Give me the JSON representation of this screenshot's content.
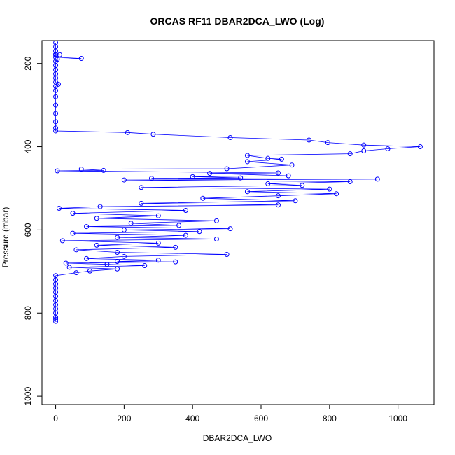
{
  "chart_data": {
    "type": "scatter",
    "title": "ORCAS RF11 DBAR2DCA_LWO (Log)",
    "xlabel": "DBAR2DCA_LWO",
    "ylabel": "Pressure (mbar)",
    "xlim": [
      -40,
      1105
    ],
    "ylim": [
      1020,
      145
    ],
    "y_reversed": true,
    "grid": false,
    "legend": "none",
    "x_ticks": [
      0,
      200,
      400,
      600,
      800,
      1000
    ],
    "y_ticks": [
      200,
      400,
      600,
      800,
      1000
    ],
    "x_tick_labels": [
      "0",
      "200",
      "400",
      "600",
      "800",
      "1000"
    ],
    "y_tick_labels": [
      "200",
      "400",
      "600",
      "800",
      "1000"
    ],
    "series": [
      {
        "color": "#0000ff",
        "marker": "open-circle",
        "connected": true,
        "points": [
          [
            0,
            150
          ],
          [
            0,
            160
          ],
          [
            0,
            170
          ],
          [
            0,
            178
          ],
          [
            12,
            179
          ],
          [
            0,
            180
          ],
          [
            0,
            185
          ],
          [
            75,
            188
          ],
          [
            5,
            190
          ],
          [
            0,
            195
          ],
          [
            0,
            205
          ],
          [
            0,
            215
          ],
          [
            0,
            225
          ],
          [
            0,
            235
          ],
          [
            0,
            245
          ],
          [
            8,
            250
          ],
          [
            0,
            255
          ],
          [
            0,
            265
          ],
          [
            0,
            280
          ],
          [
            0,
            300
          ],
          [
            0,
            320
          ],
          [
            0,
            340
          ],
          [
            0,
            355
          ],
          [
            0,
            362
          ],
          [
            210,
            366
          ],
          [
            285,
            370
          ],
          [
            510,
            378
          ],
          [
            740,
            384
          ],
          [
            795,
            390
          ],
          [
            900,
            396
          ],
          [
            1065,
            400
          ],
          [
            970,
            405
          ],
          [
            900,
            410
          ],
          [
            860,
            417
          ],
          [
            560,
            421
          ],
          [
            620,
            428
          ],
          [
            660,
            430
          ],
          [
            560,
            436
          ],
          [
            690,
            444
          ],
          [
            500,
            453
          ],
          [
            75,
            454
          ],
          [
            140,
            457
          ],
          [
            5,
            458
          ],
          [
            650,
            463
          ],
          [
            450,
            464
          ],
          [
            680,
            470
          ],
          [
            400,
            472
          ],
          [
            540,
            475
          ],
          [
            280,
            476
          ],
          [
            940,
            478
          ],
          [
            200,
            480
          ],
          [
            860,
            484
          ],
          [
            620,
            489
          ],
          [
            720,
            493
          ],
          [
            250,
            498
          ],
          [
            800,
            502
          ],
          [
            560,
            508
          ],
          [
            820,
            513
          ],
          [
            650,
            518
          ],
          [
            430,
            524
          ],
          [
            700,
            530
          ],
          [
            250,
            536
          ],
          [
            650,
            540
          ],
          [
            130,
            544
          ],
          [
            10,
            548
          ],
          [
            380,
            553
          ],
          [
            50,
            560
          ],
          [
            300,
            566
          ],
          [
            120,
            572
          ],
          [
            470,
            578
          ],
          [
            220,
            584
          ],
          [
            360,
            589
          ],
          [
            90,
            592
          ],
          [
            510,
            597
          ],
          [
            200,
            600
          ],
          [
            420,
            604
          ],
          [
            50,
            608
          ],
          [
            380,
            613
          ],
          [
            180,
            618
          ],
          [
            470,
            622
          ],
          [
            20,
            626
          ],
          [
            300,
            632
          ],
          [
            120,
            637
          ],
          [
            350,
            642
          ],
          [
            60,
            648
          ],
          [
            180,
            654
          ],
          [
            500,
            659
          ],
          [
            200,
            664
          ],
          [
            90,
            669
          ],
          [
            300,
            673
          ],
          [
            180,
            676
          ],
          [
            350,
            677
          ],
          [
            30,
            680
          ],
          [
            150,
            683
          ],
          [
            260,
            686
          ],
          [
            40,
            690
          ],
          [
            180,
            694
          ],
          [
            100,
            699
          ],
          [
            60,
            703
          ],
          [
            0,
            710
          ],
          [
            0,
            720
          ],
          [
            0,
            730
          ],
          [
            0,
            740
          ],
          [
            0,
            750
          ],
          [
            0,
            760
          ],
          [
            0,
            770
          ],
          [
            0,
            780
          ],
          [
            0,
            790
          ],
          [
            0,
            800
          ],
          [
            0,
            810
          ],
          [
            0,
            815
          ],
          [
            0,
            820
          ]
        ]
      }
    ]
  }
}
